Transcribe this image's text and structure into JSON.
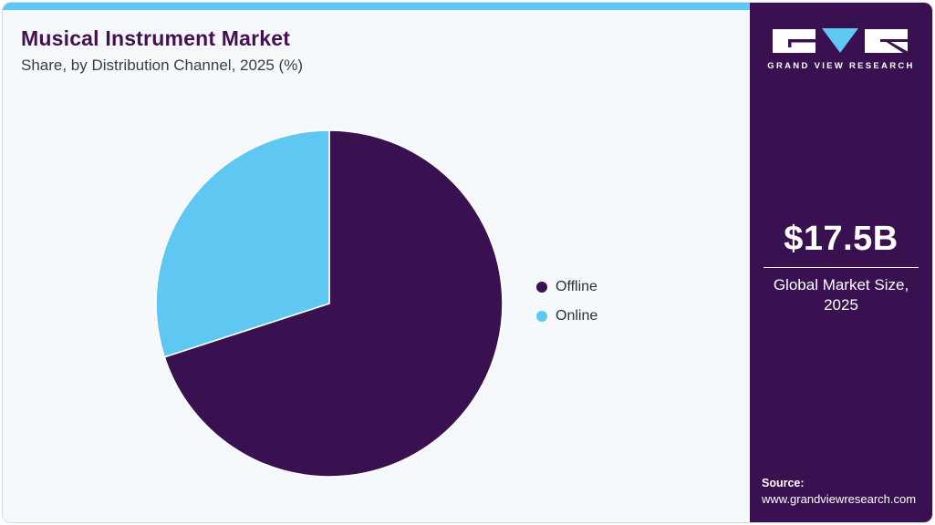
{
  "header": {
    "title": "Musical Instrument Market",
    "subtitle": "Share, by Distribution Channel, 2025 (%)"
  },
  "chart_data": {
    "type": "pie",
    "title": "Musical Instrument Market Share, by Distribution Channel, 2025 (%)",
    "labels": [
      "Offline",
      "Online"
    ],
    "values": [
      70,
      30
    ],
    "unit": "%",
    "colors": [
      "#3a1150",
      "#5ec8f2"
    ],
    "start_angle_deg": 0,
    "direction": "clockwise",
    "legend_position": "right",
    "data_labels": false
  },
  "sidebar": {
    "logo_text": "GRAND VIEW RESEARCH",
    "market_size_value": "$17.5B",
    "market_size_label": "Global Market Size, 2025",
    "source_label": "Source:",
    "source_url": "www.grandviewresearch.com",
    "background_color": "#3a1150",
    "accent_color": "#5ec8f2"
  }
}
